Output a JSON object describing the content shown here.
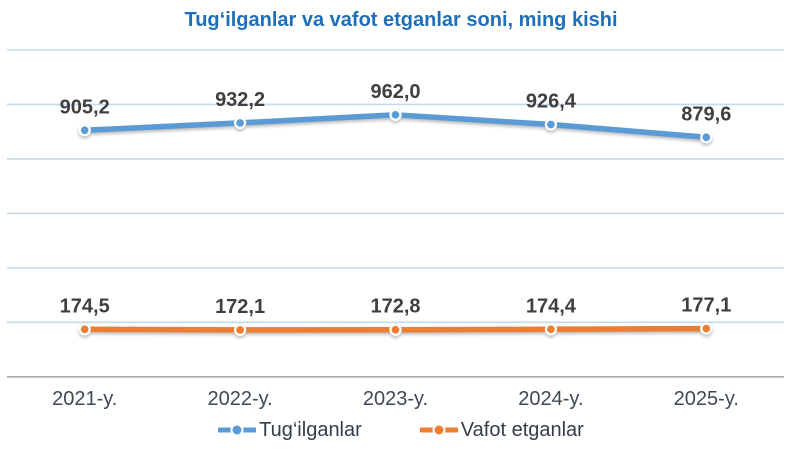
{
  "chart_data": {
    "type": "line",
    "title": "Tug‘ilganlar va vafot etganlar soni, ming kishi",
    "categories": [
      "2021-y.",
      "2022-y.",
      "2023-y.",
      "2024-y.",
      "2025-y."
    ],
    "series": [
      {
        "name": "Tug‘ilganlar",
        "color": "#5B9BD5",
        "values": [
          905.2,
          932.2,
          962.0,
          926.4,
          879.6
        ],
        "labels": [
          "905,2",
          "932,2",
          "962,0",
          "926,4",
          "879,6"
        ]
      },
      {
        "name": "Vafot etganlar",
        "color": "#ED7D31",
        "values": [
          174.5,
          172.1,
          172.8,
          174.4,
          177.1
        ],
        "labels": [
          "174,5",
          "172,1",
          "172,8",
          "174,4",
          "177,1"
        ]
      }
    ],
    "ylim": [
      0,
      1200
    ],
    "gridline_step": 200,
    "grid": true,
    "legend_position": "bottom",
    "colors": {
      "title": "#1E6FB8",
      "data_label": "#3F3F3F",
      "axis_label": "#3E4857",
      "legend_text": "#333D49",
      "gridline": "#C3DAEF",
      "axis_line": "#ACACAC",
      "background": "#FFFFFF"
    }
  }
}
